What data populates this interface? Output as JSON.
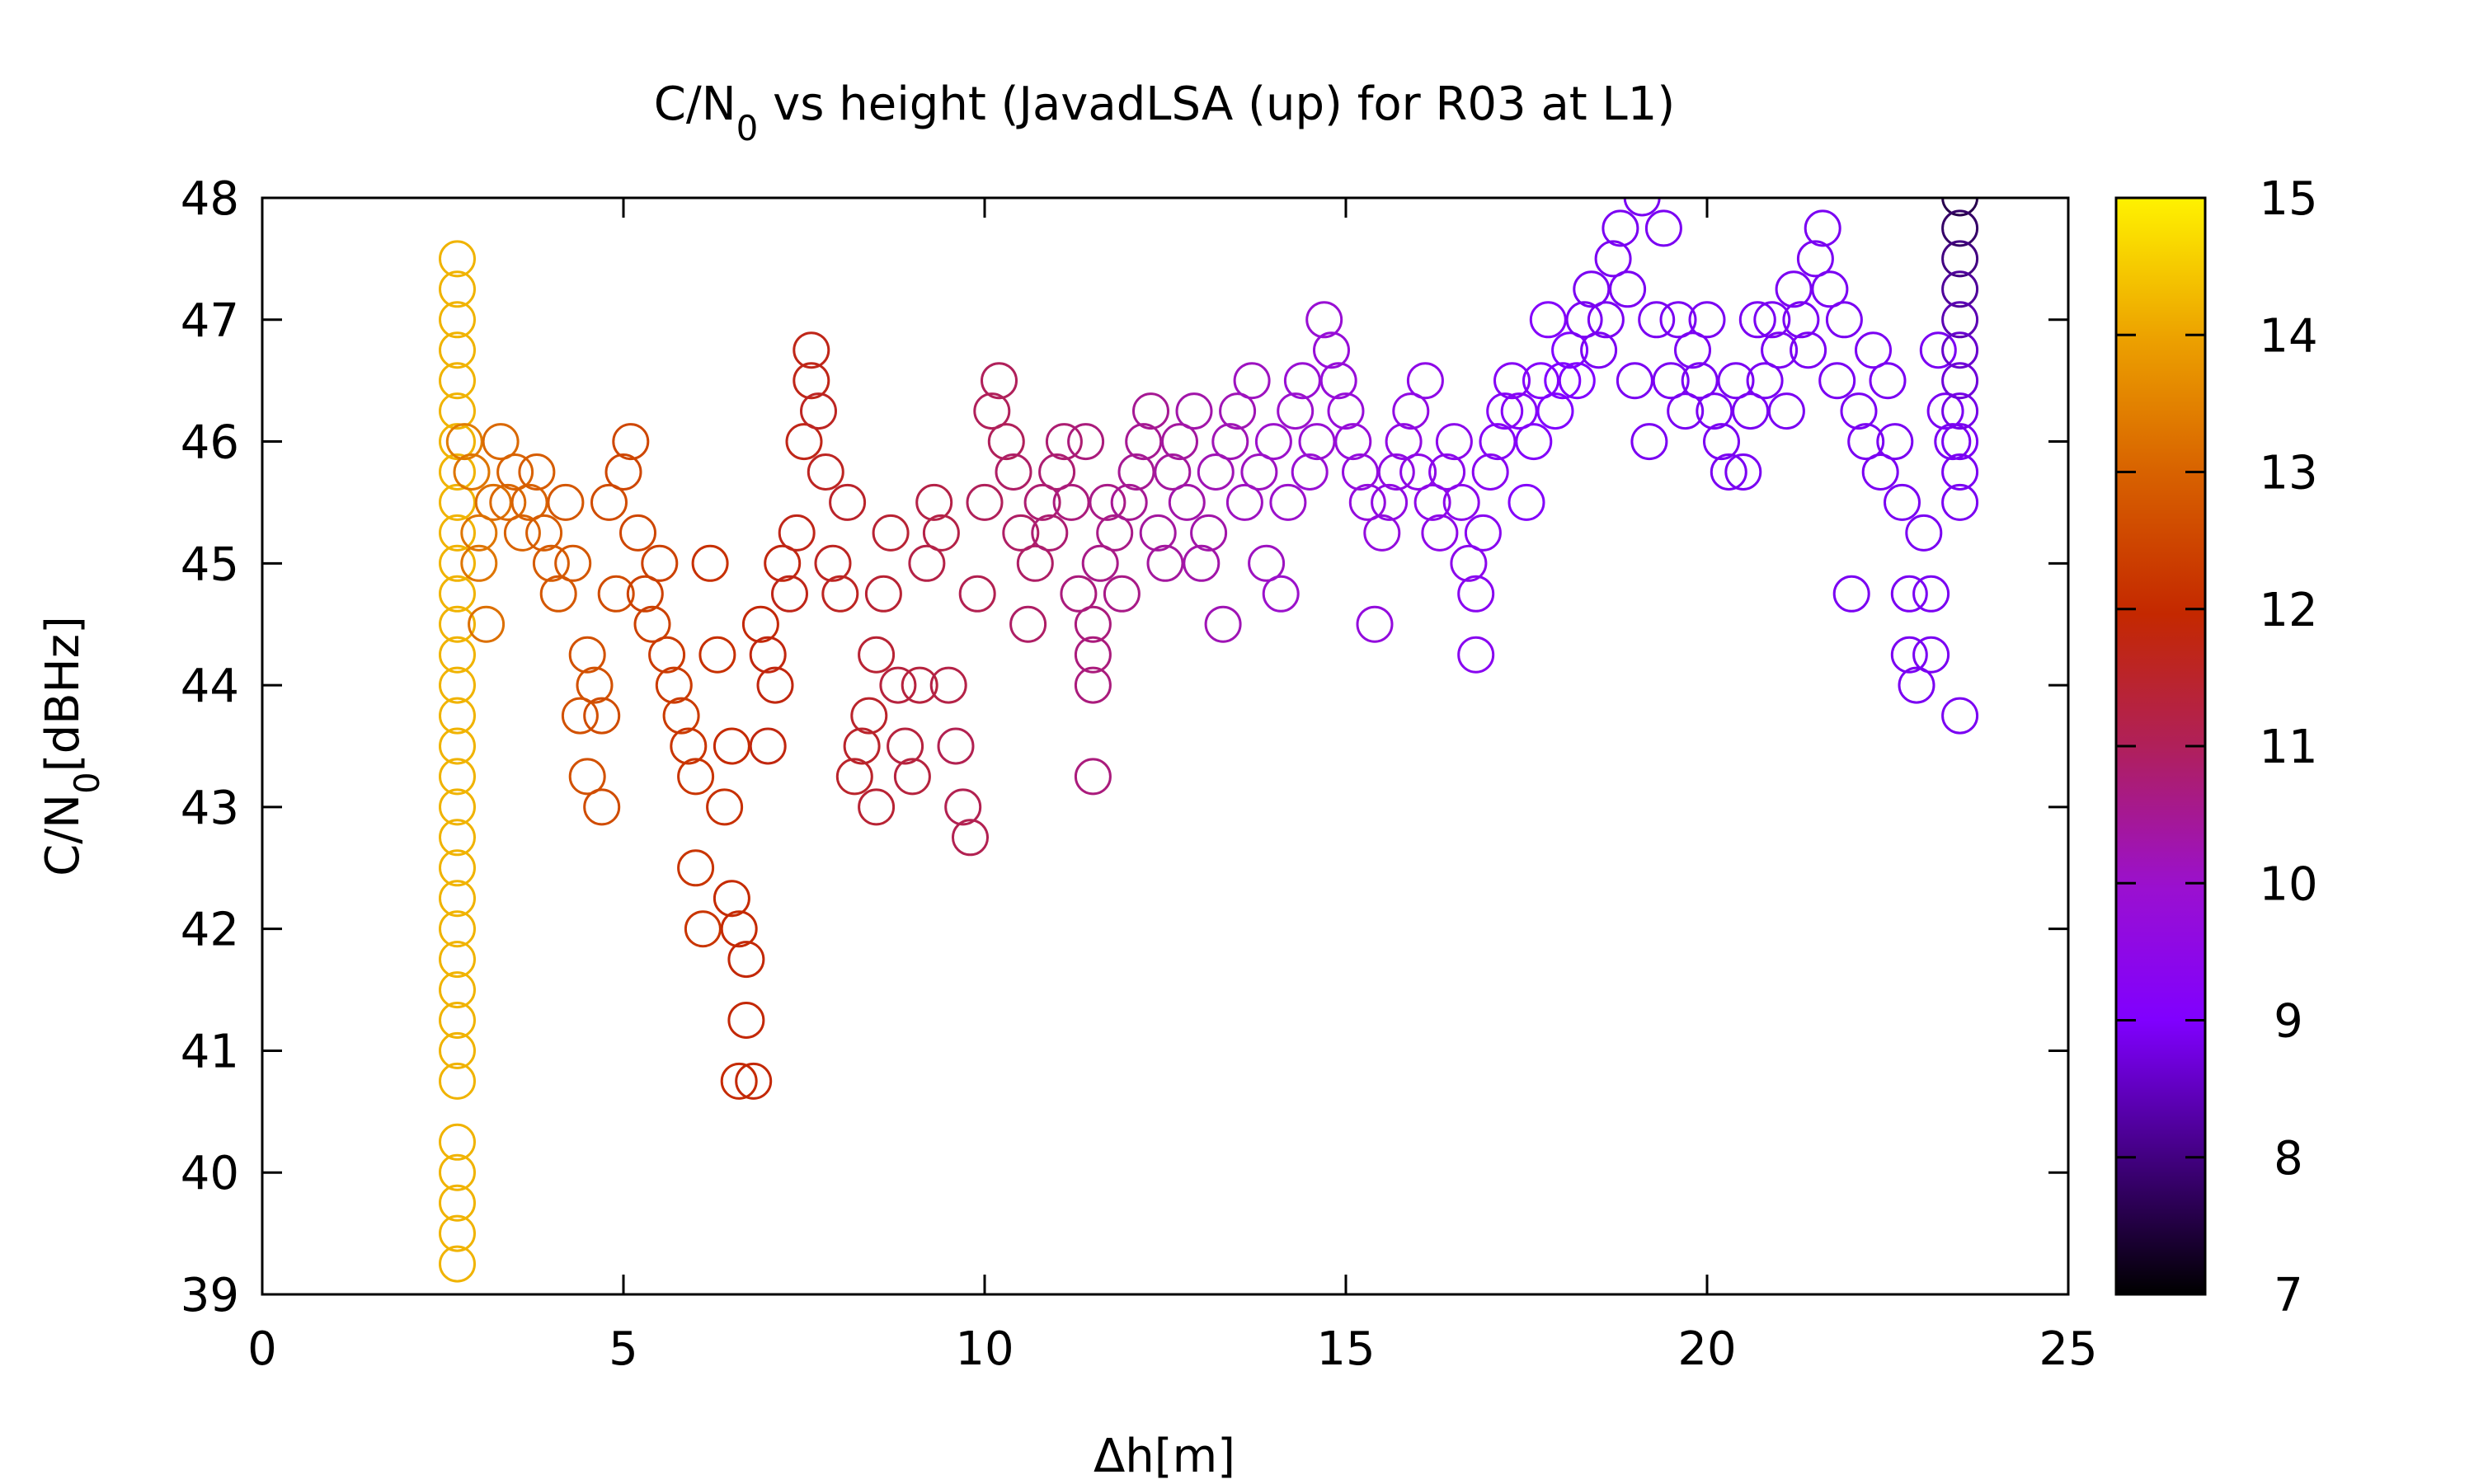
{
  "chart_data": {
    "type": "scatter",
    "title": "C/N",
    "title_subscript": "0",
    "title_rest": " vs height (JavadLSA (up) for R03 at L1)",
    "xlabel": "Δh[m]",
    "ylabel_main": "C/N",
    "ylabel_sub": "0",
    "ylabel_unit": "[dBHz]",
    "xlim": [
      0,
      25
    ],
    "ylim": [
      39,
      48
    ],
    "xticks": [
      "0",
      "5",
      "10",
      "15",
      "20",
      "25"
    ],
    "yticks": [
      "39",
      "40",
      "41",
      "42",
      "43",
      "44",
      "45",
      "46",
      "47",
      "48"
    ],
    "colorbar": {
      "range": [
        7,
        15
      ],
      "ticks": [
        "7",
        "8",
        "9",
        "10",
        "11",
        "12",
        "13",
        "14",
        "15"
      ],
      "palette": [
        "#000000",
        "#5a00b0",
        "#8a00ff",
        "#a000e0",
        "#b01a70",
        "#c02a00",
        "#d25a00",
        "#e89a00",
        "#fff000"
      ]
    },
    "marker": "open-circle",
    "grid": false,
    "legend": "none",
    "points": [
      [
        2.7,
        47.5,
        14.2
      ],
      [
        2.7,
        47.25,
        14.2
      ],
      [
        2.7,
        47,
        14.2
      ],
      [
        2.7,
        46.75,
        14.2
      ],
      [
        2.7,
        46.5,
        14.2
      ],
      [
        2.7,
        46.25,
        14.2
      ],
      [
        2.7,
        46,
        14.2
      ],
      [
        2.7,
        45.75,
        14.2
      ],
      [
        2.7,
        45.5,
        14.2
      ],
      [
        2.7,
        45.25,
        14.2
      ],
      [
        2.7,
        45,
        14.2
      ],
      [
        2.7,
        44.75,
        14.2
      ],
      [
        2.7,
        44.5,
        14.2
      ],
      [
        2.7,
        44.25,
        14.2
      ],
      [
        2.7,
        44,
        14.2
      ],
      [
        2.7,
        43.75,
        14.2
      ],
      [
        2.7,
        43.5,
        14.2
      ],
      [
        2.7,
        43.25,
        14.2
      ],
      [
        2.7,
        43,
        14.2
      ],
      [
        2.7,
        42.75,
        14.2
      ],
      [
        2.7,
        42.5,
        14.2
      ],
      [
        2.7,
        42.25,
        14.2
      ],
      [
        2.7,
        42,
        14.2
      ],
      [
        2.7,
        41.75,
        14.2
      ],
      [
        2.7,
        41.5,
        14.2
      ],
      [
        2.7,
        41.25,
        14.2
      ],
      [
        2.7,
        41,
        14.2
      ],
      [
        2.7,
        40.75,
        14.2
      ],
      [
        2.7,
        40.25,
        14.2
      ],
      [
        2.7,
        40,
        14.2
      ],
      [
        2.7,
        39.75,
        14.2
      ],
      [
        2.7,
        39.5,
        14.2
      ],
      [
        2.7,
        39.25,
        14.2
      ],
      [
        2.8,
        46,
        13.4
      ],
      [
        2.9,
        45.75,
        13.3
      ],
      [
        3.0,
        45.25,
        13.3
      ],
      [
        3.0,
        45,
        13.3
      ],
      [
        3.1,
        44.5,
        13.2
      ],
      [
        3.2,
        45.5,
        13.2
      ],
      [
        3.3,
        46,
        13.1
      ],
      [
        3.4,
        45.5,
        13.1
      ],
      [
        3.5,
        45.75,
        13.0
      ],
      [
        3.6,
        45.25,
        13.0
      ],
      [
        3.7,
        45.5,
        13.0
      ],
      [
        3.8,
        45.75,
        12.9
      ],
      [
        3.9,
        45.25,
        12.9
      ],
      [
        4.0,
        45,
        12.9
      ],
      [
        4.1,
        44.75,
        12.8
      ],
      [
        4.2,
        45.5,
        12.8
      ],
      [
        4.3,
        45,
        12.8
      ],
      [
        4.4,
        43.75,
        12.7
      ],
      [
        4.5,
        44.25,
        12.7
      ],
      [
        4.5,
        43.25,
        12.7
      ],
      [
        4.6,
        44,
        12.7
      ],
      [
        4.7,
        43.75,
        12.6
      ],
      [
        4.7,
        43,
        12.6
      ],
      [
        4.8,
        45.5,
        12.6
      ],
      [
        4.9,
        44.75,
        12.6
      ],
      [
        5.0,
        45.75,
        12.5
      ],
      [
        5.1,
        46,
        12.5
      ],
      [
        5.2,
        45.25,
        12.5
      ],
      [
        5.3,
        44.75,
        12.4
      ],
      [
        5.4,
        44.5,
        12.4
      ],
      [
        5.5,
        45,
        12.4
      ],
      [
        5.6,
        44.25,
        12.3
      ],
      [
        5.7,
        44,
        12.3
      ],
      [
        5.8,
        43.75,
        12.3
      ],
      [
        5.9,
        43.5,
        12.2
      ],
      [
        6.0,
        43.25,
        12.2
      ],
      [
        6.0,
        42.5,
        12.2
      ],
      [
        6.1,
        42,
        12.2
      ],
      [
        6.2,
        45,
        12.1
      ],
      [
        6.3,
        44.25,
        12.1
      ],
      [
        6.4,
        43,
        12.1
      ],
      [
        6.5,
        43.5,
        12.0
      ],
      [
        6.5,
        42.25,
        12.0
      ],
      [
        6.6,
        42,
        12.0
      ],
      [
        6.6,
        40.75,
        12.0
      ],
      [
        6.7,
        41.75,
        11.9
      ],
      [
        6.7,
        41.25,
        11.9
      ],
      [
        6.8,
        40.75,
        11.9
      ],
      [
        6.9,
        44.5,
        11.9
      ],
      [
        7.0,
        44.25,
        11.8
      ],
      [
        7.0,
        43.5,
        11.8
      ],
      [
        7.1,
        44,
        11.8
      ],
      [
        7.2,
        45,
        11.8
      ],
      [
        7.3,
        44.75,
        11.7
      ],
      [
        7.4,
        45.25,
        11.7
      ],
      [
        7.5,
        46,
        11.7
      ],
      [
        7.6,
        46.75,
        11.7
      ],
      [
        7.6,
        46.5,
        11.7
      ],
      [
        7.7,
        46.25,
        11.6
      ],
      [
        7.8,
        45.75,
        11.6
      ],
      [
        7.9,
        45,
        11.6
      ],
      [
        8.0,
        44.75,
        11.6
      ],
      [
        8.1,
        45.5,
        11.5
      ],
      [
        8.2,
        43.25,
        11.5
      ],
      [
        8.3,
        43.5,
        11.5
      ],
      [
        8.4,
        43.75,
        11.5
      ],
      [
        8.5,
        44.25,
        11.4
      ],
      [
        8.5,
        43,
        11.4
      ],
      [
        8.6,
        44.75,
        11.4
      ],
      [
        8.7,
        45.25,
        11.4
      ],
      [
        8.8,
        44,
        11.3
      ],
      [
        8.9,
        43.5,
        11.3
      ],
      [
        9.0,
        43.25,
        11.3
      ],
      [
        9.1,
        44,
        11.3
      ],
      [
        9.2,
        45,
        11.2
      ],
      [
        9.3,
        45.5,
        11.2
      ],
      [
        9.4,
        45.25,
        11.2
      ],
      [
        9.5,
        44,
        11.2
      ],
      [
        9.6,
        43.5,
        11.1
      ],
      [
        9.7,
        43,
        11.1
      ],
      [
        9.8,
        42.75,
        11.1
      ],
      [
        9.9,
        44.75,
        11.1
      ],
      [
        10.0,
        45.5,
        11.0
      ],
      [
        10.1,
        46.25,
        11.0
      ],
      [
        10.2,
        46.5,
        11.0
      ],
      [
        10.3,
        46,
        11.0
      ],
      [
        10.4,
        45.75,
        10.9
      ],
      [
        10.5,
        45.25,
        10.9
      ],
      [
        10.6,
        44.5,
        10.9
      ],
      [
        10.7,
        45,
        10.9
      ],
      [
        10.8,
        45.5,
        10.8
      ],
      [
        10.9,
        45.25,
        10.8
      ],
      [
        11.0,
        45.75,
        10.8
      ],
      [
        11.1,
        46,
        10.8
      ],
      [
        11.2,
        45.5,
        10.7
      ],
      [
        11.3,
        44.75,
        10.7
      ],
      [
        11.4,
        46,
        10.7
      ],
      [
        11.5,
        44.5,
        10.7
      ],
      [
        11.5,
        44.25,
        10.7
      ],
      [
        11.5,
        44,
        10.7
      ],
      [
        11.5,
        43.25,
        10.7
      ],
      [
        11.6,
        45,
        10.6
      ],
      [
        11.7,
        45.5,
        10.6
      ],
      [
        11.8,
        45.25,
        10.6
      ],
      [
        11.9,
        44.75,
        10.6
      ],
      [
        12.0,
        45.5,
        10.5
      ],
      [
        12.1,
        45.75,
        10.5
      ],
      [
        12.2,
        46,
        10.5
      ],
      [
        12.3,
        46.25,
        10.5
      ],
      [
        12.4,
        45.25,
        10.4
      ],
      [
        12.5,
        45,
        10.4
      ],
      [
        12.6,
        45.75,
        10.4
      ],
      [
        12.7,
        46,
        10.4
      ],
      [
        12.8,
        45.5,
        10.3
      ],
      [
        12.9,
        46.25,
        10.3
      ],
      [
        13.0,
        45,
        10.3
      ],
      [
        13.1,
        45.25,
        10.3
      ],
      [
        13.2,
        45.75,
        10.2
      ],
      [
        13.3,
        44.5,
        10.2
      ],
      [
        13.4,
        46,
        10.2
      ],
      [
        13.5,
        46.25,
        10.2
      ],
      [
        13.6,
        45.5,
        10.1
      ],
      [
        13.7,
        46.5,
        10.1
      ],
      [
        13.8,
        45.75,
        10.1
      ],
      [
        13.9,
        45,
        10.1
      ],
      [
        14.0,
        46,
        10.0
      ],
      [
        14.1,
        44.75,
        10.0
      ],
      [
        14.2,
        45.5,
        10.0
      ],
      [
        14.3,
        46.25,
        10.0
      ],
      [
        14.4,
        46.5,
        9.9
      ],
      [
        14.5,
        45.75,
        9.9
      ],
      [
        14.6,
        46,
        9.9
      ],
      [
        14.7,
        47,
        9.9
      ],
      [
        14.8,
        46.75,
        9.8
      ],
      [
        14.9,
        46.5,
        9.8
      ],
      [
        15.0,
        46.25,
        9.8
      ],
      [
        15.1,
        46,
        9.8
      ],
      [
        15.2,
        45.75,
        9.7
      ],
      [
        15.3,
        45.5,
        9.7
      ],
      [
        15.4,
        44.5,
        9.7
      ],
      [
        15.5,
        45.25,
        9.7
      ],
      [
        15.6,
        45.5,
        9.6
      ],
      [
        15.7,
        45.75,
        9.6
      ],
      [
        15.8,
        46,
        9.6
      ],
      [
        15.9,
        46.25,
        9.6
      ],
      [
        16.0,
        45.75,
        9.5
      ],
      [
        16.1,
        46.5,
        9.5
      ],
      [
        16.2,
        45.5,
        9.5
      ],
      [
        16.3,
        45.25,
        9.5
      ],
      [
        16.4,
        45.75,
        9.4
      ],
      [
        16.5,
        46,
        9.4
      ],
      [
        16.6,
        45.5,
        9.4
      ],
      [
        16.7,
        45,
        9.4
      ],
      [
        16.8,
        44.75,
        9.3
      ],
      [
        16.8,
        44.25,
        9.3
      ],
      [
        16.9,
        45.25,
        9.3
      ],
      [
        17.0,
        45.75,
        9.3
      ],
      [
        17.1,
        46,
        9.2
      ],
      [
        17.2,
        46.25,
        9.2
      ],
      [
        17.3,
        46.5,
        9.2
      ],
      [
        17.4,
        46.25,
        9.2
      ],
      [
        17.5,
        45.5,
        9.1
      ],
      [
        17.6,
        46,
        9.1
      ],
      [
        17.7,
        46.5,
        9.1
      ],
      [
        17.8,
        47,
        9.1
      ],
      [
        17.9,
        46.25,
        9.0
      ],
      [
        18.0,
        46.5,
        9.0
      ],
      [
        18.1,
        46.75,
        9.0
      ],
      [
        18.2,
        46.5,
        9.0
      ],
      [
        18.3,
        47,
        8.9
      ],
      [
        18.4,
        47.25,
        8.9
      ],
      [
        18.5,
        46.75,
        8.9
      ],
      [
        18.6,
        47,
        8.9
      ],
      [
        18.7,
        47.5,
        8.9
      ],
      [
        18.8,
        47.75,
        8.9
      ],
      [
        18.9,
        47.25,
        8.9
      ],
      [
        19.0,
        46.5,
        8.9
      ],
      [
        19.1,
        48,
        8.9
      ],
      [
        19.2,
        46,
        8.9
      ],
      [
        19.3,
        47,
        8.9
      ],
      [
        19.4,
        47.75,
        8.9
      ],
      [
        19.5,
        46.5,
        8.9
      ],
      [
        19.6,
        47,
        8.9
      ],
      [
        19.7,
        46.25,
        8.9
      ],
      [
        19.8,
        46.75,
        8.9
      ],
      [
        19.9,
        46.5,
        8.9
      ],
      [
        20.0,
        47,
        8.9
      ],
      [
        20.1,
        46.25,
        8.9
      ],
      [
        20.2,
        46,
        8.9
      ],
      [
        20.3,
        45.75,
        8.9
      ],
      [
        20.4,
        46.5,
        8.9
      ],
      [
        20.5,
        45.75,
        8.9
      ],
      [
        20.6,
        46.25,
        8.9
      ],
      [
        20.7,
        47,
        8.9
      ],
      [
        20.8,
        46.5,
        8.9
      ],
      [
        20.9,
        47,
        8.9
      ],
      [
        21.0,
        46.75,
        8.9
      ],
      [
        21.1,
        46.25,
        8.9
      ],
      [
        21.2,
        47.25,
        8.9
      ],
      [
        21.3,
        47,
        8.9
      ],
      [
        21.4,
        46.75,
        8.9
      ],
      [
        21.5,
        47.5,
        8.9
      ],
      [
        21.6,
        47.75,
        8.9
      ],
      [
        21.7,
        47.25,
        8.9
      ],
      [
        21.8,
        46.5,
        8.9
      ],
      [
        21.9,
        47,
        8.9
      ],
      [
        22.0,
        44.75,
        8.9
      ],
      [
        22.1,
        46.25,
        8.9
      ],
      [
        22.2,
        46,
        8.9
      ],
      [
        22.3,
        46.75,
        8.9
      ],
      [
        22.4,
        45.75,
        8.9
      ],
      [
        22.5,
        46.5,
        8.9
      ],
      [
        22.6,
        46,
        8.9
      ],
      [
        22.7,
        45.5,
        8.9
      ],
      [
        22.8,
        44.25,
        8.9
      ],
      [
        22.8,
        44.75,
        8.9
      ],
      [
        22.9,
        44,
        8.9
      ],
      [
        23.0,
        45.25,
        8.9
      ],
      [
        23.1,
        44.25,
        8.9
      ],
      [
        23.1,
        44.75,
        8.9
      ],
      [
        23.2,
        46.75,
        8.9
      ],
      [
        23.3,
        46.25,
        8.9
      ],
      [
        23.4,
        46,
        8.9
      ],
      [
        23.5,
        48,
        7.6
      ],
      [
        23.5,
        47.75,
        7.8
      ],
      [
        23.5,
        47.5,
        8.0
      ],
      [
        23.5,
        47.25,
        8.2
      ],
      [
        23.5,
        47,
        8.4
      ],
      [
        23.5,
        46.75,
        8.6
      ],
      [
        23.5,
        46.5,
        8.7
      ],
      [
        23.5,
        46.25,
        8.8
      ],
      [
        23.5,
        46,
        8.9
      ],
      [
        23.5,
        45.75,
        8.9
      ],
      [
        23.5,
        45.5,
        8.9
      ],
      [
        23.5,
        43.75,
        8.9
      ]
    ]
  }
}
